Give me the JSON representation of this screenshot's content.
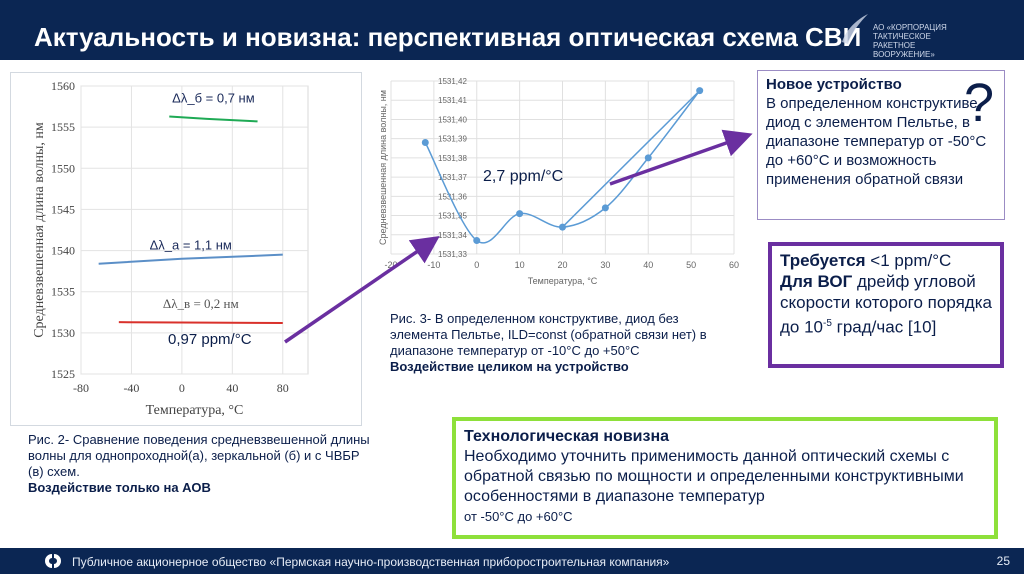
{
  "header": {
    "title": "Актуальность и новизна: перспективная оптическая схема СВИ",
    "logo_text": "АО «КОРПОРАЦИЯ ТАКТИЧЕСКОЕ РАКЕТНОЕ ВООРУЖЕНИЕ»"
  },
  "footer": {
    "text": "Публичное акционерное общество «Пермская научно-производственная приборостроительная компания»",
    "page": "25"
  },
  "annotations": {
    "ppm1": "0,97 ppm/°C",
    "ppm2": "2,7 ppm/°C"
  },
  "captions": {
    "fig2": "Рис. 2- Сравнение поведения средневзвешенной длины волны для однопроходной(а), зеркальной (б) и с ЧВБР (в) схем.",
    "fig2_bold": "Воздействие только на АОВ",
    "fig3": "Рис. 3- В определенном конструктиве, диод без элемента Пельтье, ILD=const (обратной связи нет) в диапазоне температур от -10°С до +50°С",
    "fig3_bold": "Воздействие целиком на устройство"
  },
  "box_new": {
    "heading": "Новое устройство",
    "body": "В определенном конструктиве, диод с элементом Пельтье, в диапазоне температур от -50°С до +60°С и возможность применения обратной связи",
    "mark": "?"
  },
  "box_req": {
    "bold1": "Требуется",
    "text1": " <1 ppm/°C",
    "bold2": "Для ВОГ",
    "text2": " дрейф угловой скорости которого порядка до 10",
    "sup": "-5",
    "text3": " град/час [10]"
  },
  "box_novelty": {
    "heading": "Технологическая новизна",
    "body": "Необходимо уточнить применимость данной оптический схемы с обратной связью по мощности и определенными конструктивными особенностями в диапазоне температур",
    "tail": "от -50°С до +60°С"
  },
  "colors": {
    "header": "#0b2653",
    "accent_purple": "#6a2fa0",
    "green_border": "#8ee03a",
    "series_a": "#5b8fc7",
    "series_b": "#1faa55",
    "series_c": "#d9312b",
    "series_2": "#5b9bd5"
  },
  "chart_data": [
    {
      "type": "line",
      "xlabel": "Температура, °С",
      "ylabel": "Средневзвешенная длина волны, нм",
      "xlim": [
        -80,
        100
      ],
      "ylim": [
        1525,
        1560
      ],
      "xticks": [
        "-80",
        "-40",
        "0",
        "40",
        "80"
      ],
      "yticks": [
        "1525",
        "1530",
        "1535",
        "1540",
        "1545",
        "1550",
        "1555",
        "1560"
      ],
      "grid": true,
      "series": [
        {
          "name": "Δλ_б = 0,7 нм",
          "color": "#1faa55",
          "x": [
            -10,
            20,
            60
          ],
          "y": [
            1556.3,
            1556.0,
            1555.7
          ]
        },
        {
          "name": "Δλ_а = 1,1 нм",
          "color": "#5b8fc7",
          "x": [
            -66,
            0,
            80
          ],
          "y": [
            1538.4,
            1539.0,
            1539.5
          ]
        },
        {
          "name": "Δλ_в = 0,2 нм",
          "color": "#d9312b",
          "x": [
            -50,
            20,
            80
          ],
          "y": [
            1531.3,
            1531.25,
            1531.2
          ]
        }
      ]
    },
    {
      "type": "line",
      "xlabel": "Температура, °С",
      "ylabel": "Средневзвешенная длина волны, нм",
      "xlim": [
        -20,
        60
      ],
      "ylim": [
        1531.33,
        1531.42
      ],
      "xticks": [
        "-20",
        "-10",
        "0",
        "10",
        "20",
        "30",
        "40",
        "50",
        "60"
      ],
      "yticks": [
        "1531,33",
        "1531,34",
        "1531,35",
        "1531,36",
        "1531,37",
        "1531,38",
        "1531,39",
        "1531,40",
        "1531,41",
        "1531,42"
      ],
      "grid": true,
      "series": [
        {
          "color": "#5b9bd5",
          "x": [
            -12,
            0,
            10,
            20,
            30,
            40,
            52,
            20
          ],
          "y": [
            1531.388,
            1531.337,
            1531.351,
            1531.344,
            1531.354,
            1531.38,
            1531.415,
            1531.344
          ]
        }
      ]
    }
  ]
}
